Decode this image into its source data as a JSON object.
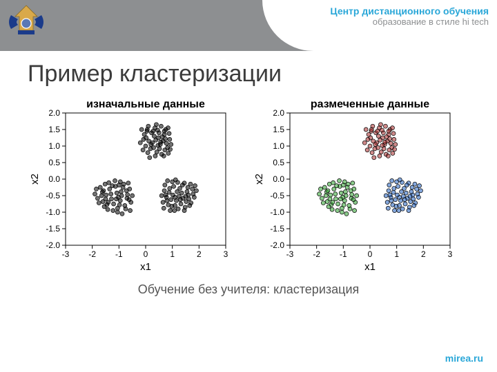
{
  "header": {
    "line1": "Центр дистанционного обучения",
    "line2": "образование в стиле hi tech"
  },
  "slide_title": "Пример кластеризации",
  "caption": "Обучение без учителя: кластеризация",
  "footer": "mirea.ru",
  "logo": {
    "body_color": "#d9a94a",
    "wings_color": "#1b3b8a",
    "seal_color": "#5a78b5"
  },
  "chart": {
    "panels": [
      {
        "title": "изначальные данные",
        "mode": "mono"
      },
      {
        "title": "размеченные данные",
        "mode": "colored"
      }
    ],
    "xlabel": "x1",
    "ylabel": "x2",
    "xlim": [
      -3,
      3
    ],
    "ylim": [
      -2.0,
      2.0
    ],
    "xticks": [
      -3,
      -2,
      -1,
      0,
      1,
      2,
      3
    ],
    "yticks": [
      -2.0,
      -1.5,
      -1.0,
      -0.5,
      0.0,
      0.5,
      1.0,
      1.5,
      2.0
    ],
    "title_fontsize": 16,
    "label_fontsize": 15,
    "tick_fontsize": 12,
    "background_color": "#ffffff",
    "axis_color": "#000000",
    "marker": {
      "radius": 3.0,
      "stroke": "#000000",
      "fill_opacity": 0.55,
      "stroke_width": 0.7
    },
    "mono_color": "#000000",
    "cluster_colors": [
      "#2ca02c",
      "#a82a2a",
      "#1f5fbf"
    ],
    "clusters": [
      {
        "color_index": 0,
        "points": [
          [
            -1.45,
            -0.77
          ],
          [
            -1.13,
            -0.22
          ],
          [
            -0.95,
            -0.65
          ],
          [
            -1.62,
            -0.39
          ],
          [
            -1.05,
            -0.88
          ],
          [
            -0.68,
            -0.47
          ],
          [
            -1.38,
            -0.11
          ],
          [
            -1.8,
            -0.58
          ],
          [
            -0.82,
            -0.15
          ],
          [
            -1.22,
            -0.95
          ],
          [
            -0.55,
            -0.7
          ],
          [
            -1.55,
            -0.83
          ],
          [
            -0.92,
            -0.38
          ],
          [
            -1.7,
            -0.25
          ],
          [
            -1.02,
            -0.55
          ],
          [
            -0.75,
            -0.9
          ],
          [
            -1.28,
            -0.6
          ],
          [
            -1.48,
            -0.48
          ],
          [
            -0.6,
            -0.3
          ],
          [
            -1.9,
            -0.45
          ],
          [
            -1.15,
            -0.05
          ],
          [
            -0.88,
            -1.05
          ],
          [
            -1.6,
            -0.68
          ],
          [
            -0.7,
            -0.58
          ],
          [
            -1.35,
            -0.3
          ],
          [
            -0.98,
            -0.78
          ],
          [
            -1.52,
            -0.15
          ],
          [
            -0.65,
            -0.12
          ],
          [
            -1.08,
            -0.42
          ],
          [
            -1.75,
            -0.72
          ],
          [
            -0.5,
            -0.5
          ],
          [
            -1.2,
            -0.75
          ],
          [
            -1.42,
            -0.92
          ],
          [
            -0.85,
            -0.25
          ],
          [
            -1.0,
            -0.18
          ],
          [
            -1.65,
            -0.5
          ],
          [
            -0.78,
            -0.8
          ],
          [
            -1.3,
            -0.45
          ],
          [
            -0.58,
            -0.95
          ],
          [
            -1.85,
            -0.3
          ],
          [
            -1.1,
            -0.6
          ],
          [
            -0.72,
            -0.35
          ],
          [
            -1.5,
            -0.6
          ],
          [
            -0.9,
            -0.5
          ],
          [
            -1.25,
            -0.2
          ],
          [
            -1.05,
            -1.0
          ],
          [
            -0.62,
            -0.62
          ],
          [
            -1.4,
            -0.7
          ],
          [
            -0.95,
            -0.08
          ],
          [
            -1.58,
            -0.35
          ]
        ]
      },
      {
        "color_index": 1,
        "points": [
          [
            0.25,
            1.1
          ],
          [
            0.6,
            0.75
          ],
          [
            0.05,
            1.45
          ],
          [
            0.48,
            1.25
          ],
          [
            0.82,
            0.95
          ],
          [
            -0.1,
            0.88
          ],
          [
            0.35,
            1.55
          ],
          [
            0.7,
            1.35
          ],
          [
            0.15,
            0.65
          ],
          [
            0.55,
            1.05
          ],
          [
            0.9,
            1.2
          ],
          [
            0.02,
            1.25
          ],
          [
            0.42,
            0.82
          ],
          [
            0.75,
            1.5
          ],
          [
            -0.2,
            1.1
          ],
          [
            0.3,
            0.95
          ],
          [
            0.65,
            1.15
          ],
          [
            0.1,
            1.6
          ],
          [
            0.5,
            1.4
          ],
          [
            0.85,
            0.78
          ],
          [
            -0.05,
            1.35
          ],
          [
            0.38,
            1.18
          ],
          [
            0.72,
            0.88
          ],
          [
            0.2,
            1.05
          ],
          [
            0.58,
            1.6
          ],
          [
            0.95,
            1.05
          ],
          [
            0.08,
            0.8
          ],
          [
            0.45,
            1.48
          ],
          [
            0.78,
            1.08
          ],
          [
            -0.15,
            1.5
          ],
          [
            0.32,
            1.3
          ],
          [
            0.68,
            0.7
          ],
          [
            0.12,
            1.15
          ],
          [
            0.52,
            0.92
          ],
          [
            0.88,
            1.38
          ],
          [
            0.0,
            1.0
          ],
          [
            0.4,
            1.65
          ],
          [
            0.74,
            1.22
          ],
          [
            0.22,
            1.4
          ],
          [
            0.62,
            1.28
          ],
          [
            0.92,
            0.9
          ],
          [
            -0.08,
            1.2
          ],
          [
            0.36,
            0.7
          ],
          [
            0.7,
            1.45
          ],
          [
            0.18,
            0.92
          ],
          [
            0.56,
            1.12
          ],
          [
            0.84,
            1.55
          ],
          [
            0.06,
            1.5
          ],
          [
            0.46,
            1.02
          ],
          [
            0.28,
            1.45
          ]
        ]
      },
      {
        "color_index": 2,
        "points": [
          [
            1.1,
            -0.55
          ],
          [
            1.45,
            -0.12
          ],
          [
            0.85,
            -0.78
          ],
          [
            1.6,
            -0.48
          ],
          [
            1.22,
            -0.9
          ],
          [
            0.7,
            -0.35
          ],
          [
            1.52,
            -0.68
          ],
          [
            1.05,
            -0.22
          ],
          [
            1.75,
            -0.3
          ],
          [
            0.92,
            -0.95
          ],
          [
            1.35,
            -0.42
          ],
          [
            1.15,
            -0.65
          ],
          [
            0.78,
            -0.55
          ],
          [
            1.68,
            -0.15
          ],
          [
            1.0,
            -0.08
          ],
          [
            1.48,
            -0.85
          ],
          [
            0.65,
            -0.7
          ],
          [
            1.28,
            -0.28
          ],
          [
            1.82,
            -0.55
          ],
          [
            0.88,
            -0.4
          ],
          [
            1.4,
            -0.58
          ],
          [
            1.1,
            -0.8
          ],
          [
            0.72,
            -0.18
          ],
          [
            1.55,
            -0.38
          ],
          [
            1.2,
            -0.1
          ],
          [
            0.95,
            -0.62
          ],
          [
            1.7,
            -0.72
          ],
          [
            0.82,
            -0.05
          ],
          [
            1.32,
            -0.75
          ],
          [
            1.58,
            -0.25
          ],
          [
            1.02,
            -0.48
          ],
          [
            0.68,
            -0.88
          ],
          [
            1.45,
            -0.95
          ],
          [
            1.18,
            -0.38
          ],
          [
            1.78,
            -0.45
          ],
          [
            0.9,
            -0.28
          ],
          [
            1.5,
            -0.52
          ],
          [
            1.08,
            -0.95
          ],
          [
            0.75,
            -0.48
          ],
          [
            1.62,
            -0.6
          ],
          [
            1.25,
            -0.52
          ],
          [
            0.98,
            -0.82
          ],
          [
            1.85,
            -0.2
          ],
          [
            0.8,
            -0.65
          ],
          [
            1.38,
            -0.18
          ],
          [
            1.12,
            -0.02
          ],
          [
            0.6,
            -0.5
          ],
          [
            1.65,
            -0.8
          ],
          [
            1.3,
            -0.62
          ],
          [
            1.9,
            -0.35
          ]
        ]
      }
    ]
  }
}
